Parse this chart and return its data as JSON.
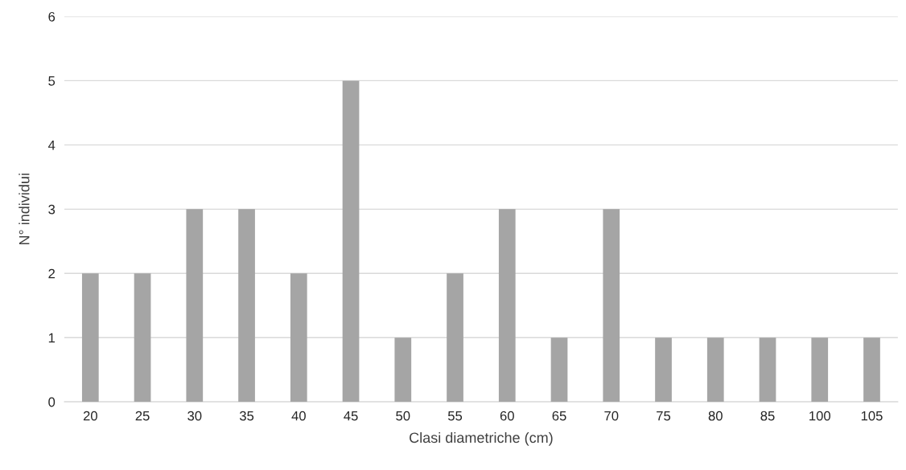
{
  "chart_data": {
    "type": "bar",
    "xlabel": "Clasi diametriche (cm)",
    "ylabel": "N° individui",
    "categories": [
      "20",
      "25",
      "30",
      "35",
      "40",
      "45",
      "50",
      "55",
      "60",
      "65",
      "70",
      "75",
      "80",
      "85",
      "100",
      "105"
    ],
    "values": [
      2,
      2,
      3,
      3,
      2,
      5,
      1,
      2,
      3,
      1,
      3,
      1,
      1,
      1,
      1,
      1
    ],
    "color": "#a5a5a5",
    "ylim": [
      0,
      6
    ],
    "yticks": [
      0,
      1,
      2,
      3,
      4,
      5,
      6
    ],
    "grid": "y"
  }
}
